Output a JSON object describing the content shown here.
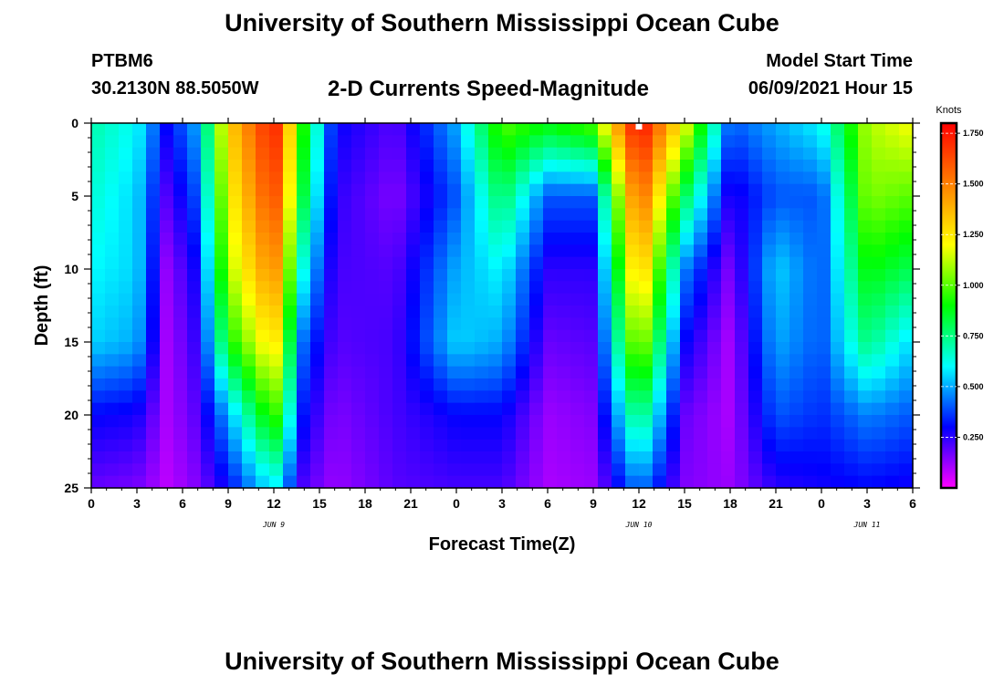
{
  "page": {
    "title_top": "University of Southern Mississippi Ocean Cube",
    "title_bottom": "University of Southern Mississippi Ocean Cube",
    "station": "PTBM6",
    "coordinates": "30.2130N  88.5050W",
    "subtitle": "2-D Currents Speed-Magnitude",
    "model_label": "Model Start Time",
    "model_time": "06/09/2021 Hour 15"
  },
  "chart_data": {
    "type": "heatmap",
    "title": "2-D Currents Speed-Magnitude",
    "xlabel": "Forecast Time(Z)",
    "ylabel": "Depth (ft)",
    "x_range_hours": [
      0,
      54
    ],
    "y_range_ft": [
      0,
      25
    ],
    "y_inverted": true,
    "x_tick_labels": [
      "0",
      "3",
      "6",
      "9",
      "12",
      "15",
      "18",
      "21",
      "0",
      "3",
      "6",
      "9",
      "12",
      "15",
      "18",
      "21",
      "0",
      "3",
      "6"
    ],
    "y_tick_labels": [
      "0",
      "5",
      "10",
      "15",
      "20",
      "25"
    ],
    "y_ticks": [
      0,
      5,
      10,
      15,
      20,
      25
    ],
    "date_labels": [
      {
        "text": "JUN 9",
        "hour": 12
      },
      {
        "text": "JUN 10",
        "hour": 36
      },
      {
        "text": "JUN 11",
        "hour": 51
      }
    ],
    "colorbar": {
      "title": "Knots",
      "min": 0.0,
      "max": 1.8,
      "tick_labels": [
        "0.250",
        "0.500",
        "0.750",
        "1.000",
        "1.250",
        "1.500",
        "1.750"
      ],
      "ticks": [
        0.25,
        0.5,
        0.75,
        1.0,
        1.25,
        1.5,
        1.75
      ],
      "colors": [
        "#ff00ff",
        "#8000ff",
        "#0000ff",
        "#0080ff",
        "#00ffff",
        "#00ff80",
        "#00ff00",
        "#80ff00",
        "#ffff00",
        "#ffc000",
        "#ff8000",
        "#ff4000",
        "#ff0000"
      ]
    },
    "current_time_marker_hour": 36,
    "speed_profiles_knots": {
      "depths_ft": [
        0,
        5,
        10,
        15,
        20,
        25
      ],
      "series": [
        {
          "hour": 0,
          "values": [
            0.7,
            0.65,
            0.6,
            0.55,
            0.3,
            0.18
          ]
        },
        {
          "hour": 3,
          "values": [
            0.6,
            0.55,
            0.55,
            0.5,
            0.28,
            0.16
          ]
        },
        {
          "hour": 5,
          "values": [
            0.3,
            0.2,
            0.12,
            0.1,
            0.1,
            0.08
          ]
        },
        {
          "hour": 7,
          "values": [
            0.5,
            0.4,
            0.3,
            0.25,
            0.2,
            0.15
          ]
        },
        {
          "hour": 9,
          "values": [
            1.3,
            1.2,
            1.1,
            0.9,
            0.5,
            0.3
          ]
        },
        {
          "hour": 12,
          "values": [
            1.75,
            1.65,
            1.5,
            1.3,
            1.0,
            0.6
          ]
        },
        {
          "hour": 14,
          "values": [
            0.9,
            0.8,
            0.6,
            0.4,
            0.3,
            0.2
          ]
        },
        {
          "hour": 16,
          "values": [
            0.3,
            0.25,
            0.22,
            0.2,
            0.15,
            0.12
          ]
        },
        {
          "hour": 20,
          "values": [
            0.2,
            0.15,
            0.2,
            0.22,
            0.22,
            0.2
          ]
        },
        {
          "hour": 24,
          "values": [
            0.5,
            0.4,
            0.5,
            0.55,
            0.3,
            0.22
          ]
        },
        {
          "hour": 27,
          "values": [
            1.0,
            0.8,
            0.6,
            0.5,
            0.3,
            0.22
          ]
        },
        {
          "hour": 30,
          "values": [
            0.9,
            0.4,
            0.25,
            0.18,
            0.12,
            0.1
          ]
        },
        {
          "hour": 33,
          "values": [
            1.0,
            0.4,
            0.25,
            0.2,
            0.15,
            0.12
          ]
        },
        {
          "hour": 36,
          "values": [
            1.8,
            1.6,
            1.4,
            1.15,
            0.8,
            0.45
          ]
        },
        {
          "hour": 39,
          "values": [
            1.2,
            0.8,
            0.45,
            0.3,
            0.18,
            0.15
          ]
        },
        {
          "hour": 42,
          "values": [
            0.4,
            0.25,
            0.15,
            0.1,
            0.1,
            0.12
          ]
        },
        {
          "hour": 45,
          "values": [
            0.5,
            0.4,
            0.55,
            0.5,
            0.4,
            0.25
          ]
        },
        {
          "hour": 48,
          "values": [
            0.6,
            0.4,
            0.4,
            0.4,
            0.35,
            0.28
          ]
        },
        {
          "hour": 51,
          "values": [
            1.1,
            1.05,
            0.9,
            0.75,
            0.45,
            0.3
          ]
        },
        {
          "hour": 54,
          "values": [
            1.2,
            1.0,
            0.8,
            0.55,
            0.4,
            0.28
          ]
        }
      ]
    }
  }
}
